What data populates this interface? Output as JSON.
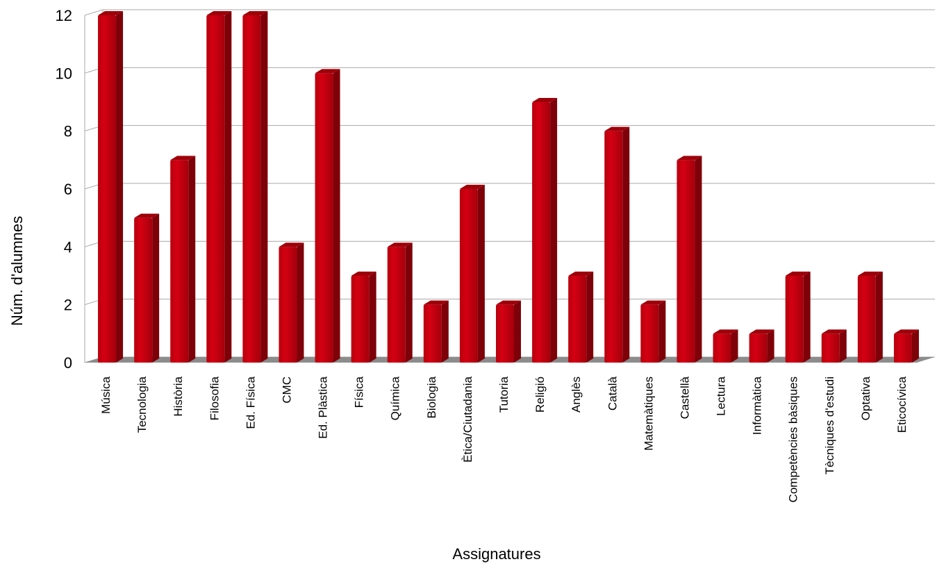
{
  "chart_data": {
    "type": "bar",
    "title": "",
    "xlabel": "Assignatures",
    "ylabel": "Núm. d'alumnes",
    "ylim": [
      0,
      12
    ],
    "yticks": [
      0,
      2,
      4,
      6,
      8,
      10,
      12
    ],
    "grid": true,
    "bar_style": "3d-cylinder-box",
    "colors": {
      "bar": "#d40012",
      "bar_side": "#7e0008",
      "bar_top": "#9e000a",
      "floor": "#8c8c8c",
      "grid": "#a8a8a8"
    },
    "categories": [
      "Música",
      "Tecnologia",
      "Història",
      "Filosofia",
      "Ed. Física",
      "CMC",
      "Ed. Plàstica",
      "Física",
      "Química",
      "Biologia",
      "Ètica/Ciutadania",
      "Tutoria",
      "Religió",
      "Anglès",
      "Català",
      "Matemàtiques",
      "Castellà",
      "Lectura",
      "Informàtica",
      "Competències bàsiques",
      "Tècniques d'estudi",
      "Optativa",
      "Eticocívica"
    ],
    "values": [
      12,
      5,
      7,
      12,
      12,
      4,
      10,
      3,
      4,
      2,
      6,
      2,
      9,
      3,
      8,
      2,
      7,
      1,
      1,
      3,
      1,
      3,
      1
    ]
  }
}
